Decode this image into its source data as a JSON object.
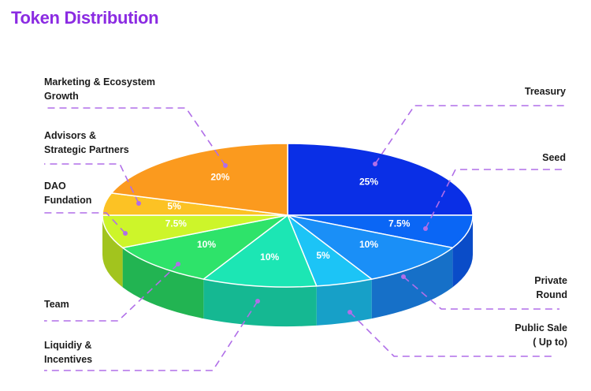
{
  "title": "Token Distribution",
  "chart_data": {
    "type": "pie",
    "title": "Token Distribution",
    "slices": [
      {
        "label": "Treasury",
        "value": 25,
        "value_label": "25%",
        "color": "#0a2fe6",
        "side": "#0a20b0"
      },
      {
        "label": "Seed",
        "value": 7.5,
        "value_label": "7.5%",
        "color": "#0a66f5",
        "side": "#0a4cc8"
      },
      {
        "label": "Private Round",
        "value": 10,
        "value_label": "10%",
        "color": "#1a8ff7",
        "side": "#1670c8"
      },
      {
        "label": "Public Sale ( Up to)",
        "value": 5,
        "value_label": "5%",
        "color": "#1cc4f6",
        "side": "#17a0c8"
      },
      {
        "label": "Liquidiy & Incentives",
        "value": 10,
        "value_label": "10%",
        "color": "#1ce6b4",
        "side": "#15b892"
      },
      {
        "label": "Team",
        "value": 10,
        "value_label": "10%",
        "color": "#2ee36a",
        "side": "#22b452"
      },
      {
        "label": "DAO Fundation",
        "value": 7.5,
        "value_label": "7.5%",
        "color": "#cdf52a",
        "side": "#a2c41e"
      },
      {
        "label": "Advisors & Strategic Partners",
        "value": 5,
        "value_label": "5%",
        "color": "#fcc224",
        "side": "#c9991a"
      },
      {
        "label": "Marketing & Ecosystem Growth",
        "value": 20,
        "value_label": "20%",
        "color": "#fb9a1e",
        "side": "#c77a16"
      }
    ]
  },
  "labels": {
    "treasury": "Treasury",
    "seed": "Seed",
    "private_1": "Private",
    "private_2": "Round",
    "public_1": "Public Sale",
    "public_2": "( Up to)",
    "liquidity_1": "Liquidiy &",
    "liquidity_2": "Incentives",
    "team": "Team",
    "dao_1": "DAO",
    "dao_2": "Fundation",
    "advisors_1": "Advisors &",
    "advisors_2": "Strategic Partners",
    "marketing_1": "Marketing & Ecosystem",
    "marketing_2": "Growth"
  }
}
